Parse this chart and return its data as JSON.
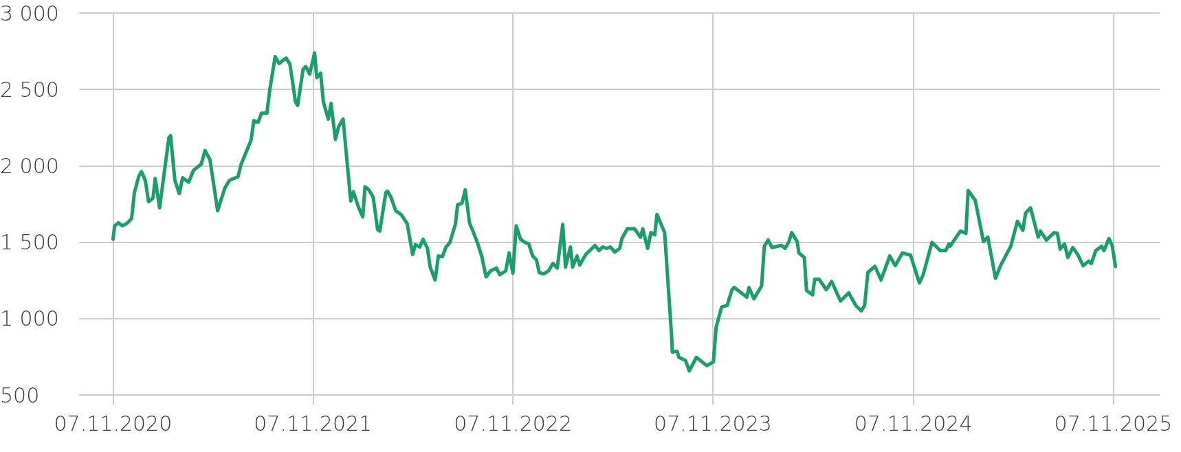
{
  "chart_data": {
    "type": "line",
    "x": [
      "2020-11-07",
      "2020-11-10",
      "2020-11-17",
      "2020-11-24",
      "2020-12-02",
      "2020-12-11",
      "2020-12-16",
      "2020-12-24",
      "2020-12-29",
      "2021-01-05",
      "2021-01-11",
      "2021-01-19",
      "2021-01-23",
      "2021-01-31",
      "2021-02-17",
      "2021-02-20",
      "2021-02-28",
      "2021-03-08",
      "2021-03-14",
      "2021-03-25",
      "2021-04-03",
      "2021-04-17",
      "2021-04-24",
      "2021-05-03",
      "2021-05-17",
      "2021-05-30",
      "2021-06-07",
      "2021-06-15",
      "2021-06-23",
      "2021-06-29",
      "2021-07-17",
      "2021-07-22",
      "2021-07-30",
      "2021-08-05",
      "2021-08-15",
      "2021-08-20",
      "2021-08-30",
      "2021-09-06",
      "2021-09-19",
      "2021-09-26",
      "2021-10-06",
      "2021-10-10",
      "2021-10-20",
      "2021-10-25",
      "2021-11-01",
      "2021-11-10",
      "2021-11-14",
      "2021-11-21",
      "2021-11-26",
      "2021-12-05",
      "2021-12-10",
      "2021-12-18",
      "2021-12-24",
      "2022-01-01",
      "2022-01-07",
      "2022-01-15",
      "2022-01-20",
      "2022-01-29",
      "2022-02-06",
      "2022-02-10",
      "2022-02-17",
      "2022-02-25",
      "2022-03-05",
      "2022-03-09",
      "2022-03-20",
      "2022-03-23",
      "2022-03-30",
      "2022-04-07",
      "2022-04-17",
      "2022-04-28",
      "2022-05-08",
      "2022-05-13",
      "2022-05-21",
      "2022-05-27",
      "2022-06-04",
      "2022-06-09",
      "2022-06-18",
      "2022-06-24",
      "2022-07-01",
      "2022-07-08",
      "2022-07-15",
      "2022-07-25",
      "2022-07-29",
      "2022-08-06",
      "2022-08-12",
      "2022-08-20",
      "2022-08-25",
      "2022-09-03",
      "2022-09-11",
      "2022-09-19",
      "2022-09-27",
      "2022-10-08",
      "2022-10-14",
      "2022-10-25",
      "2022-10-31",
      "2022-11-07",
      "2022-11-13",
      "2022-11-21",
      "2022-11-29",
      "2022-12-06",
      "2022-12-13",
      "2022-12-20",
      "2022-12-25",
      "2023-01-02",
      "2023-01-11",
      "2023-01-19",
      "2023-01-27",
      "2023-02-06",
      "2023-02-11",
      "2023-02-20",
      "2023-02-24",
      "2023-03-04",
      "2023-03-09",
      "2023-03-20",
      "2023-04-06",
      "2023-04-13",
      "2023-04-20",
      "2023-04-27",
      "2023-05-04",
      "2023-05-12",
      "2023-05-21",
      "2023-05-25",
      "2023-06-04",
      "2023-06-17",
      "2023-06-28",
      "2023-07-02",
      "2023-07-11",
      "2023-07-17",
      "2023-07-24",
      "2023-07-28",
      "2023-08-11",
      "2023-08-24",
      "2023-08-25",
      "2023-09-03",
      "2023-09-06",
      "2023-09-18",
      "2023-09-25",
      "2023-10-08",
      "2023-10-27",
      "2023-11-08",
      "2023-11-13",
      "2023-11-23",
      "2023-12-03",
      "2023-12-12",
      "2023-12-16",
      "2023-12-27",
      "2024-01-08",
      "2024-01-12",
      "2024-01-21",
      "2024-02-04",
      "2024-02-09",
      "2024-02-16",
      "2024-02-23",
      "2024-03-11",
      "2024-03-18",
      "2024-03-25",
      "2024-03-30",
      "2024-04-09",
      "2024-04-12",
      "2024-04-22",
      "2024-04-26",
      "2024-05-07",
      "2024-05-11",
      "2024-05-19",
      "2024-06-01",
      "2024-06-11",
      "2024-06-27",
      "2024-07-12",
      "2024-07-25",
      "2024-08-04",
      "2024-08-10",
      "2024-08-16",
      "2024-08-29",
      "2024-09-09",
      "2024-09-25",
      "2024-10-05",
      "2024-10-18",
      "2024-11-02",
      "2024-11-18",
      "2024-11-25",
      "2024-12-11",
      "2024-12-26",
      "2025-01-05",
      "2025-01-11",
      "2025-01-13",
      "2025-02-01",
      "2025-02-11",
      "2025-02-15",
      "2025-02-28",
      "2025-03-15",
      "2025-03-23",
      "2025-04-06",
      "2025-04-15",
      "2025-05-04",
      "2025-05-16",
      "2025-05-26",
      "2025-05-31",
      "2025-06-09",
      "2025-06-23",
      "2025-06-27",
      "2025-07-08",
      "2025-07-22",
      "2025-07-28",
      "2025-08-02",
      "2025-08-10",
      "2025-08-16",
      "2025-08-25",
      "2025-09-03",
      "2025-09-13",
      "2025-09-23",
      "2025-09-28",
      "2025-10-06",
      "2025-10-17",
      "2025-10-21",
      "2025-10-30",
      "2025-11-05",
      "2025-11-11"
    ],
    "series": [
      {
        "color": "#1a9e6a",
        "values": [
          1519,
          1607,
          1627,
          1607,
          1622,
          1656,
          1824,
          1932,
          1962,
          1903,
          1765,
          1789,
          1917,
          1725,
          2183,
          2198,
          1903,
          1819,
          1922,
          1893,
          1971,
          2011,
          2100,
          2040,
          1706,
          1853,
          1903,
          1917,
          1927,
          2011,
          2168,
          2296,
          2286,
          2345,
          2345,
          2493,
          2715,
          2670,
          2705,
          2665,
          2419,
          2395,
          2631,
          2650,
          2601,
          2739,
          2577,
          2606,
          2419,
          2306,
          2409,
          2173,
          2257,
          2306,
          2075,
          1770,
          1829,
          1730,
          1666,
          1863,
          1843,
          1794,
          1583,
          1573,
          1824,
          1834,
          1789,
          1706,
          1681,
          1622,
          1420,
          1484,
          1469,
          1519,
          1460,
          1337,
          1253,
          1410,
          1405,
          1469,
          1499,
          1617,
          1745,
          1755,
          1843,
          1622,
          1583,
          1499,
          1410,
          1273,
          1312,
          1331,
          1287,
          1312,
          1430,
          1297,
          1607,
          1519,
          1499,
          1489,
          1410,
          1385,
          1302,
          1292,
          1312,
          1361,
          1331,
          1617,
          1337,
          1469,
          1337,
          1410,
          1351,
          1420,
          1479,
          1445,
          1469,
          1460,
          1469,
          1435,
          1460,
          1524,
          1588,
          1588,
          1533,
          1588,
          1460,
          1563,
          1548,
          1681,
          1563,
          869,
          781,
          786,
          746,
          726,
          658,
          746,
          692,
          717,
          943,
          1076,
          1086,
          1189,
          1204,
          1174,
          1140,
          1204,
          1130,
          1214,
          1474,
          1514,
          1465,
          1479,
          1460,
          1504,
          1563,
          1504,
          1430,
          1400,
          1184,
          1155,
          1258,
          1258,
          1189,
          1243,
          1115,
          1169,
          1086,
          1051,
          1086,
          1302,
          1342,
          1253,
          1410,
          1346,
          1430,
          1415,
          1233,
          1287,
          1499,
          1445,
          1445,
          1489,
          1474,
          1573,
          1558,
          1839,
          1775,
          1504,
          1533,
          1263,
          1346,
          1474,
          1637,
          1578,
          1691,
          1725,
          1533,
          1573,
          1514,
          1563,
          1558,
          1455,
          1489,
          1400,
          1465,
          1420,
          1346,
          1376,
          1361,
          1445,
          1474,
          1445,
          1524,
          1479,
          1341
        ]
      }
    ],
    "xlim": [
      "2020-09-06",
      "2026-02-01"
    ],
    "xticks": [
      {
        "value": "2020-11-07",
        "label": "07.11.2020"
      },
      {
        "value": "2021-11-07",
        "label": "07.11.2021"
      },
      {
        "value": "2022-11-07",
        "label": "07.11.2022"
      },
      {
        "value": "2023-11-07",
        "label": "07.11.2023"
      },
      {
        "value": "2024-11-07",
        "label": "07.11.2024"
      },
      {
        "value": "2025-11-07",
        "label": "07.11.2025"
      }
    ],
    "ylim": [
      500,
      3000
    ],
    "yticks": [
      500,
      {
        "value": 1000,
        "label": "1 000"
      },
      {
        "value": 1500,
        "label": "1 500"
      },
      {
        "value": 2000,
        "label": "2 000"
      },
      {
        "value": 2500,
        "label": "2 500"
      },
      {
        "value": 3000,
        "label": "3 000"
      }
    ],
    "grid": true
  }
}
